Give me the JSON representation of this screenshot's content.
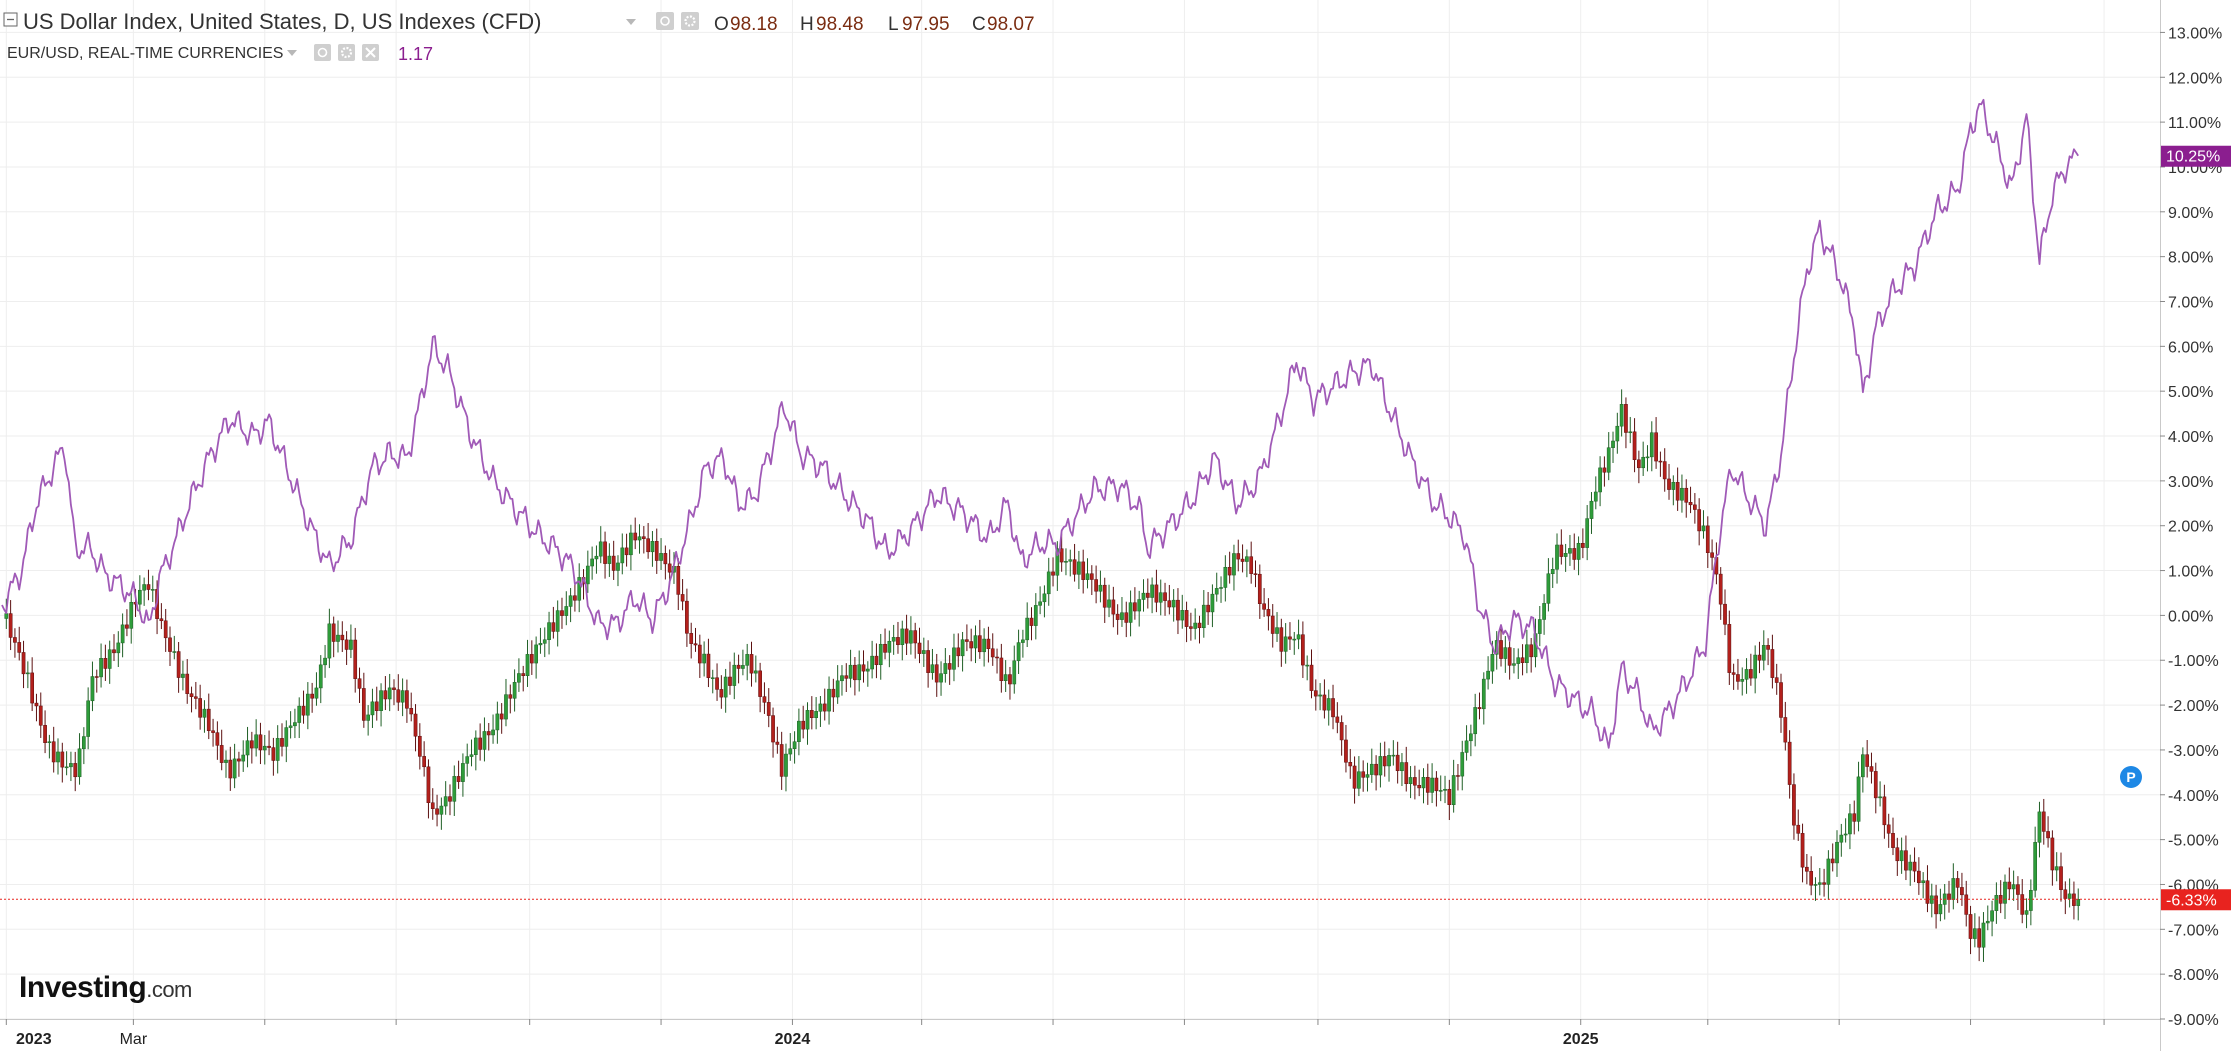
{
  "legend": {
    "main": {
      "title": "US Dollar Index, United States, D, US Indexes (CFD)",
      "open_label": "O",
      "open": "98.18",
      "high_label": "H",
      "high": "98.48",
      "low_label": "L",
      "low": "97.95",
      "close_label": "C",
      "close": "98.07"
    },
    "compare": {
      "title": "EUR/USD, REAL-TIME CURRENCIES",
      "value": "1.17"
    }
  },
  "brand": {
    "logo_text": "Investing",
    "logo_suffix": ".com"
  },
  "badges": {
    "p_marker": "P"
  },
  "colors": {
    "up": "#2e9c3a",
    "down": "#b3201c",
    "compare_line": "#a05ab7",
    "compare_badge": "#8b1e8f",
    "main_badge": "#e8231f",
    "grid": "#eeeeee"
  },
  "chart_data": {
    "type": "line",
    "subtype": "candlestick-percent-change comparison",
    "y_unit": "%",
    "ylim": [
      -9,
      13.5
    ],
    "y_ticks": [
      "13.00%",
      "12.00%",
      "11.00%",
      "10.00%",
      "9.00%",
      "8.00%",
      "7.00%",
      "6.00%",
      "5.00%",
      "4.00%",
      "3.00%",
      "2.00%",
      "1.00%",
      "0.00%",
      "-1.00%",
      "-2.00%",
      "-3.00%",
      "-4.00%",
      "-5.00%",
      "-6.00%",
      "-7.00%",
      "-8.00%",
      "-9.00%"
    ],
    "x_labels": [
      {
        "label": "2023",
        "date": "2023-01-01",
        "bold": true
      },
      {
        "label": "Mar",
        "date": "2023-03-01",
        "bold": false
      },
      {
        "label": "2024",
        "date": "2024-01-01",
        "bold": true
      },
      {
        "label": "2025",
        "date": "2025-01-01",
        "bold": true
      }
    ],
    "x_range": [
      "2022-12-30",
      "2025-09-20"
    ],
    "grid": true,
    "last_values": {
      "compare": "10.25%",
      "main": "-6.33%"
    },
    "series": [
      {
        "name": "US Dollar Index, United States, D, US Indexes (CFD)",
        "style": "candles",
        "points": [
          [
            "2022-12-30",
            0
          ],
          [
            "2023-01-10",
            -1.3
          ],
          [
            "2023-01-20",
            -2.8
          ],
          [
            "2023-01-28",
            -3.3
          ],
          [
            "2023-02-03",
            -3.5
          ],
          [
            "2023-02-10",
            -1.5
          ],
          [
            "2023-02-20",
            -0.8
          ],
          [
            "2023-03-03",
            0.6
          ],
          [
            "2023-03-08",
            0.8
          ],
          [
            "2023-03-15",
            -0.4
          ],
          [
            "2023-03-25",
            -1.7
          ],
          [
            "2023-04-05",
            -2.4
          ],
          [
            "2023-04-14",
            -3.4
          ],
          [
            "2023-04-25",
            -2.8
          ],
          [
            "2023-05-05",
            -3.2
          ],
          [
            "2023-05-15",
            -2.3
          ],
          [
            "2023-05-25",
            -1.5
          ],
          [
            "2023-05-31",
            -0.3
          ],
          [
            "2023-06-10",
            -0.8
          ],
          [
            "2023-06-16",
            -2.4
          ],
          [
            "2023-06-28",
            -1.6
          ],
          [
            "2023-07-06",
            -1.8
          ],
          [
            "2023-07-12",
            -3.0
          ],
          [
            "2023-07-18",
            -4.5
          ],
          [
            "2023-07-25",
            -4.2
          ],
          [
            "2023-08-05",
            -3.0
          ],
          [
            "2023-08-15",
            -2.4
          ],
          [
            "2023-08-25",
            -1.5
          ],
          [
            "2023-09-05",
            -0.8
          ],
          [
            "2023-09-20",
            0.4
          ],
          [
            "2023-10-03",
            1.6
          ],
          [
            "2023-10-10",
            1.0
          ],
          [
            "2023-10-20",
            1.7
          ],
          [
            "2023-10-31",
            1.4
          ],
          [
            "2023-11-08",
            1.0
          ],
          [
            "2023-11-14",
            -0.5
          ],
          [
            "2023-11-21",
            -1.1
          ],
          [
            "2023-11-28",
            -1.9
          ],
          [
            "2023-12-06",
            -1.2
          ],
          [
            "2023-12-12",
            -0.9
          ],
          [
            "2023-12-20",
            -2.0
          ],
          [
            "2023-12-27",
            -3.4
          ],
          [
            "2024-01-05",
            -2.5
          ],
          [
            "2024-01-15",
            -2.1
          ],
          [
            "2024-01-25",
            -1.2
          ],
          [
            "2024-02-05",
            -1.1
          ],
          [
            "2024-02-15",
            -0.7
          ],
          [
            "2024-02-25",
            -0.5
          ],
          [
            "2024-03-08",
            -1.3
          ],
          [
            "2024-03-20",
            -0.6
          ],
          [
            "2024-04-01",
            -0.8
          ],
          [
            "2024-04-10",
            -1.6
          ],
          [
            "2024-04-16",
            -0.4
          ],
          [
            "2024-04-25",
            0.4
          ],
          [
            "2024-05-03",
            1.3
          ],
          [
            "2024-05-10",
            1.0
          ],
          [
            "2024-05-20",
            0.7
          ],
          [
            "2024-06-01",
            0.0
          ],
          [
            "2024-06-14",
            0.5
          ],
          [
            "2024-06-26",
            0.1
          ],
          [
            "2024-07-05",
            -0.3
          ],
          [
            "2024-07-15",
            0.6
          ],
          [
            "2024-07-25",
            1.3
          ],
          [
            "2024-08-01",
            1.0
          ],
          [
            "2024-08-06",
            0.1
          ],
          [
            "2024-08-15",
            -0.6
          ],
          [
            "2024-08-22",
            -0.3
          ],
          [
            "2024-08-30",
            -1.7
          ],
          [
            "2024-09-08",
            -2.2
          ],
          [
            "2024-09-17",
            -3.8
          ],
          [
            "2024-09-26",
            -3.4
          ],
          [
            "2024-10-05",
            -3.0
          ],
          [
            "2024-10-15",
            -3.8
          ],
          [
            "2024-10-25",
            -3.9
          ],
          [
            "2024-11-01",
            -4.1
          ],
          [
            "2024-11-08",
            -2.9
          ],
          [
            "2024-11-15",
            -1.8
          ],
          [
            "2024-11-22",
            -0.6
          ],
          [
            "2024-12-01",
            -1.2
          ],
          [
            "2024-12-10",
            -0.8
          ],
          [
            "2024-12-20",
            1.5
          ],
          [
            "2025-01-01",
            1.5
          ],
          [
            "2025-01-07",
            2.7
          ],
          [
            "2025-01-14",
            3.5
          ],
          [
            "2025-01-20",
            4.5
          ],
          [
            "2025-01-28",
            3.3
          ],
          [
            "2025-02-03",
            4.0
          ],
          [
            "2025-02-10",
            3.0
          ],
          [
            "2025-02-20",
            2.5
          ],
          [
            "2025-02-28",
            1.6
          ],
          [
            "2025-03-06",
            0.7
          ],
          [
            "2025-03-12",
            -1.4
          ],
          [
            "2025-03-20",
            -1.2
          ],
          [
            "2025-03-28",
            -0.6
          ],
          [
            "2025-04-04",
            -2.2
          ],
          [
            "2025-04-10",
            -4.7
          ],
          [
            "2025-04-16",
            -5.9
          ],
          [
            "2025-04-22",
            -6.0
          ],
          [
            "2025-05-01",
            -4.9
          ],
          [
            "2025-05-08",
            -4.4
          ],
          [
            "2025-05-12",
            -3.1
          ],
          [
            "2025-05-18",
            -4.0
          ],
          [
            "2025-05-26",
            -5.3
          ],
          [
            "2025-06-05",
            -5.6
          ],
          [
            "2025-06-15",
            -6.5
          ],
          [
            "2025-06-25",
            -6.0
          ],
          [
            "2025-07-01",
            -7.2
          ],
          [
            "2025-07-05",
            -7.3
          ],
          [
            "2025-07-12",
            -6.4
          ],
          [
            "2025-07-20",
            -5.8
          ],
          [
            "2025-07-27",
            -6.7
          ],
          [
            "2025-08-02",
            -4.4
          ],
          [
            "2025-08-08",
            -5.6
          ],
          [
            "2025-08-14",
            -6.4
          ],
          [
            "2025-08-20",
            -6.33
          ]
        ]
      },
      {
        "name": "EUR/USD, REAL-TIME CURRENCIES",
        "style": "line",
        "points": [
          [
            "2022-12-30",
            0.2
          ],
          [
            "2023-01-08",
            1.0
          ],
          [
            "2023-01-15",
            2.5
          ],
          [
            "2023-01-22",
            3.2
          ],
          [
            "2023-01-28",
            3.8
          ],
          [
            "2023-02-02",
            1.5
          ],
          [
            "2023-02-09",
            1.5
          ],
          [
            "2023-02-16",
            0.9
          ],
          [
            "2023-02-25",
            0.6
          ],
          [
            "2023-03-03",
            0.3
          ],
          [
            "2023-03-08",
            -0.3
          ],
          [
            "2023-03-13",
            0.8
          ],
          [
            "2023-03-20",
            1.6
          ],
          [
            "2023-03-27",
            2.5
          ],
          [
            "2023-04-05",
            3.5
          ],
          [
            "2023-04-15",
            4.4
          ],
          [
            "2023-04-25",
            4.0
          ],
          [
            "2023-05-03",
            4.3
          ],
          [
            "2023-05-12",
            3.2
          ],
          [
            "2023-05-22",
            2.0
          ],
          [
            "2023-05-31",
            1.1
          ],
          [
            "2023-06-10",
            1.7
          ],
          [
            "2023-06-20",
            3.3
          ],
          [
            "2023-06-28",
            3.6
          ],
          [
            "2023-07-06",
            3.5
          ],
          [
            "2023-07-12",
            4.7
          ],
          [
            "2023-07-18",
            6.0
          ],
          [
            "2023-07-25",
            5.5
          ],
          [
            "2023-08-05",
            4.0
          ],
          [
            "2023-08-15",
            3.0
          ],
          [
            "2023-08-25",
            2.4
          ],
          [
            "2023-09-05",
            1.8
          ],
          [
            "2023-09-15",
            1.4
          ],
          [
            "2023-09-22",
            1.0
          ],
          [
            "2023-10-03",
            -0.2
          ],
          [
            "2023-10-11",
            -0.2
          ],
          [
            "2023-10-20",
            0.4
          ],
          [
            "2023-10-28",
            -0.1
          ],
          [
            "2023-11-05",
            0.7
          ],
          [
            "2023-11-14",
            2.0
          ],
          [
            "2023-11-22",
            3.3
          ],
          [
            "2023-11-30",
            3.5
          ],
          [
            "2023-12-07",
            2.5
          ],
          [
            "2023-12-14",
            2.6
          ],
          [
            "2023-12-22",
            3.7
          ],
          [
            "2023-12-28",
            4.7
          ],
          [
            "2024-01-05",
            3.6
          ],
          [
            "2024-01-15",
            3.3
          ],
          [
            "2024-01-25",
            2.7
          ],
          [
            "2024-02-05",
            2.1
          ],
          [
            "2024-02-14",
            1.4
          ],
          [
            "2024-02-25",
            1.9
          ],
          [
            "2024-03-08",
            2.7
          ],
          [
            "2024-03-20",
            2.3
          ],
          [
            "2024-04-01",
            1.7
          ],
          [
            "2024-04-10",
            2.5
          ],
          [
            "2024-04-16",
            1.2
          ],
          [
            "2024-04-25",
            1.6
          ],
          [
            "2024-05-03",
            1.6
          ],
          [
            "2024-05-10",
            2.1
          ],
          [
            "2024-05-20",
            2.8
          ],
          [
            "2024-06-01",
            2.9
          ],
          [
            "2024-06-10",
            2.4
          ],
          [
            "2024-06-14",
            1.5
          ],
          [
            "2024-06-26",
            2.1
          ],
          [
            "2024-07-05",
            2.6
          ],
          [
            "2024-07-15",
            3.5
          ],
          [
            "2024-07-25",
            2.5
          ],
          [
            "2024-08-01",
            2.8
          ],
          [
            "2024-08-06",
            3.2
          ],
          [
            "2024-08-15",
            4.5
          ],
          [
            "2024-08-22",
            5.7
          ],
          [
            "2024-08-30",
            4.8
          ],
          [
            "2024-09-08",
            5.1
          ],
          [
            "2024-09-17",
            5.4
          ],
          [
            "2024-09-26",
            5.6
          ],
          [
            "2024-10-05",
            4.5
          ],
          [
            "2024-10-15",
            3.4
          ],
          [
            "2024-10-25",
            2.5
          ],
          [
            "2024-11-01",
            2.2
          ],
          [
            "2024-11-08",
            1.8
          ],
          [
            "2024-11-15",
            0.2
          ],
          [
            "2024-11-22",
            -0.7
          ],
          [
            "2024-12-01",
            -0.1
          ],
          [
            "2024-12-10",
            -0.3
          ],
          [
            "2024-12-20",
            -1.5
          ],
          [
            "2025-01-01",
            -2.0
          ],
          [
            "2025-01-07",
            -2.2
          ],
          [
            "2025-01-14",
            -3.0
          ],
          [
            "2025-01-20",
            -1.2
          ],
          [
            "2025-01-28",
            -1.8
          ],
          [
            "2025-02-03",
            -2.6
          ],
          [
            "2025-02-10",
            -2.2
          ],
          [
            "2025-02-20",
            -1.4
          ],
          [
            "2025-02-28",
            -0.6
          ],
          [
            "2025-03-06",
            1.7
          ],
          [
            "2025-03-12",
            3.3
          ],
          [
            "2025-03-20",
            2.6
          ],
          [
            "2025-03-28",
            2.0
          ],
          [
            "2025-04-04",
            3.6
          ],
          [
            "2025-04-10",
            5.8
          ],
          [
            "2025-04-16",
            7.7
          ],
          [
            "2025-04-22",
            8.6
          ],
          [
            "2025-05-01",
            7.6
          ],
          [
            "2025-05-08",
            6.5
          ],
          [
            "2025-05-12",
            4.9
          ],
          [
            "2025-05-18",
            6.4
          ],
          [
            "2025-05-26",
            7.2
          ],
          [
            "2025-06-05",
            7.8
          ],
          [
            "2025-06-15",
            9.0
          ],
          [
            "2025-06-25",
            9.5
          ],
          [
            "2025-07-01",
            10.8
          ],
          [
            "2025-07-05",
            11.4
          ],
          [
            "2025-07-12",
            10.6
          ],
          [
            "2025-07-20",
            9.5
          ],
          [
            "2025-07-27",
            11.1
          ],
          [
            "2025-08-02",
            7.9
          ],
          [
            "2025-08-08",
            9.4
          ],
          [
            "2025-08-14",
            10.0
          ],
          [
            "2025-08-20",
            10.25
          ]
        ]
      }
    ]
  }
}
